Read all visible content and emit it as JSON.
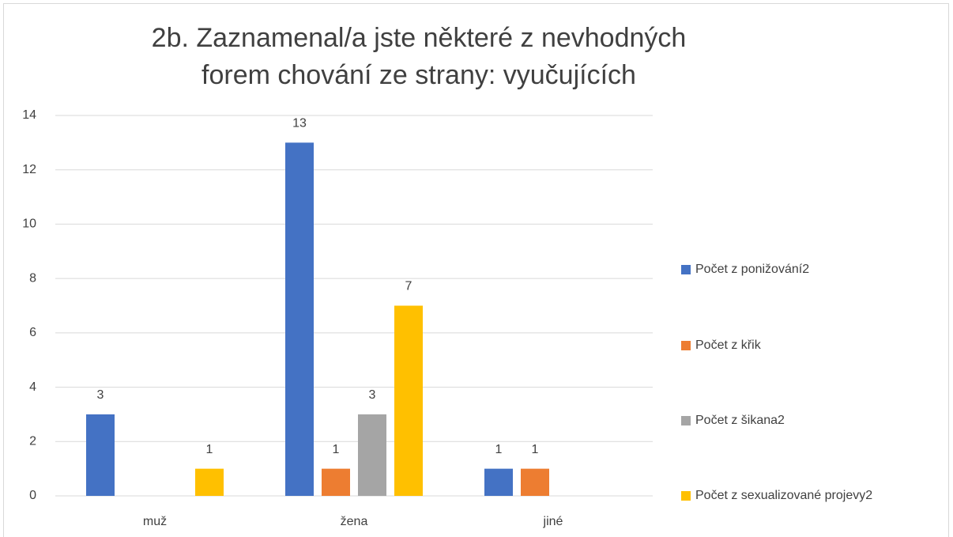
{
  "chart_data": {
    "type": "bar",
    "title": "2b. Zaznamenal/a jste některé z nevhodných forem chování ze strany: vyučujících",
    "categories": [
      "muž",
      "žena",
      "jiné"
    ],
    "series": [
      {
        "name": "Počet z ponižování2",
        "color": "#4472c4",
        "values": [
          3,
          13,
          1
        ]
      },
      {
        "name": "Počet z křik",
        "color": "#ed7d31",
        "values": [
          null,
          1,
          1
        ]
      },
      {
        "name": "Počet z šikana2",
        "color": "#a5a5a5",
        "values": [
          null,
          3,
          null
        ]
      },
      {
        "name": "Počet z sexualizované projevy2",
        "color": "#ffc000",
        "values": [
          1,
          7,
          null
        ]
      }
    ],
    "ylim": [
      0,
      14
    ],
    "yticks": [
      0,
      2,
      4,
      6,
      8,
      10,
      12,
      14
    ],
    "grid": true,
    "legend": "right"
  }
}
